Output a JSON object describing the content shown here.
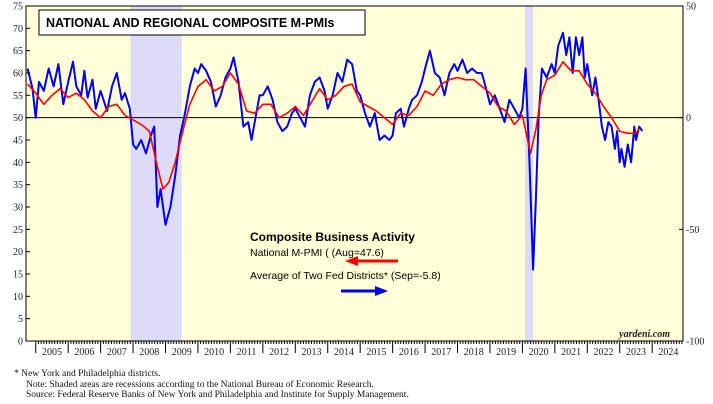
{
  "chart_data": {
    "type": "line",
    "title": "NATIONAL AND REGIONAL COMPOSITE M-PMIs",
    "legend_title": "Composite Business Activity",
    "left_axis": {
      "ylim": [
        0,
        75
      ],
      "ticks": [
        "0",
        "5",
        "10",
        "15",
        "20",
        "25",
        "30",
        "35",
        "40",
        "45",
        "50",
        "55",
        "60",
        "65",
        "70",
        "75"
      ]
    },
    "right_axis": {
      "ylim": [
        -100,
        50
      ],
      "ticks": [
        "-100",
        "-50",
        "0",
        "50"
      ]
    },
    "x_range": [
      2004.7,
      2024.95
    ],
    "x_ticks": [
      "2005",
      "2006",
      "2007",
      "2008",
      "2009",
      "2010",
      "2011",
      "2012",
      "2013",
      "2014",
      "2015",
      "2016",
      "2017",
      "2018",
      "2019",
      "2020",
      "2021",
      "2022",
      "2023",
      "2024"
    ],
    "reference_line": {
      "axis": "right",
      "value": 0
    },
    "recessions": [
      {
        "start": 2007.92,
        "end": 2009.5
      },
      {
        "start": 2020.08,
        "end": 2020.33
      }
    ],
    "series": [
      {
        "name": "National M-PMI",
        "legend_label": "National M-PMI ( (Aug=47.6)",
        "axis": "left",
        "color": "#ff0000",
        "points": [
          [
            2004.75,
            57.5
          ],
          [
            2005.0,
            55.5
          ],
          [
            2005.25,
            53.0
          ],
          [
            2005.5,
            55.0
          ],
          [
            2005.75,
            56.5
          ],
          [
            2006.0,
            54.5
          ],
          [
            2006.25,
            55.5
          ],
          [
            2006.5,
            54.0
          ],
          [
            2006.75,
            51.5
          ],
          [
            2007.0,
            50.0
          ],
          [
            2007.25,
            52.5
          ],
          [
            2007.5,
            53.0
          ],
          [
            2007.75,
            50.5
          ],
          [
            2008.0,
            49.5
          ],
          [
            2008.25,
            48.5
          ],
          [
            2008.5,
            47.0
          ],
          [
            2008.75,
            39.0
          ],
          [
            2008.92,
            34.0
          ],
          [
            2009.1,
            35.5
          ],
          [
            2009.3,
            40.0
          ],
          [
            2009.5,
            46.0
          ],
          [
            2009.75,
            53.0
          ],
          [
            2010.0,
            57.0
          ],
          [
            2010.25,
            58.5
          ],
          [
            2010.5,
            56.0
          ],
          [
            2010.75,
            57.0
          ],
          [
            2011.0,
            60.0
          ],
          [
            2011.25,
            57.5
          ],
          [
            2011.5,
            51.5
          ],
          [
            2011.75,
            51.0
          ],
          [
            2012.0,
            53.0
          ],
          [
            2012.25,
            53.0
          ],
          [
            2012.5,
            50.0
          ],
          [
            2012.75,
            51.0
          ],
          [
            2013.0,
            52.5
          ],
          [
            2013.25,
            50.5
          ],
          [
            2013.5,
            53.5
          ],
          [
            2013.75,
            56.5
          ],
          [
            2014.0,
            54.0
          ],
          [
            2014.25,
            55.0
          ],
          [
            2014.5,
            57.0
          ],
          [
            2014.75,
            57.5
          ],
          [
            2015.0,
            53.5
          ],
          [
            2015.25,
            52.5
          ],
          [
            2015.5,
            51.5
          ],
          [
            2015.75,
            50.0
          ],
          [
            2016.0,
            48.5
          ],
          [
            2016.25,
            51.0
          ],
          [
            2016.5,
            50.5
          ],
          [
            2016.75,
            52.5
          ],
          [
            2017.0,
            56.0
          ],
          [
            2017.25,
            55.0
          ],
          [
            2017.5,
            57.5
          ],
          [
            2017.75,
            58.5
          ],
          [
            2018.0,
            59.0
          ],
          [
            2018.25,
            58.5
          ],
          [
            2018.5,
            58.5
          ],
          [
            2018.75,
            57.0
          ],
          [
            2019.0,
            55.5
          ],
          [
            2019.25,
            52.5
          ],
          [
            2019.5,
            51.5
          ],
          [
            2019.75,
            48.5
          ],
          [
            2020.0,
            50.5
          ],
          [
            2020.25,
            42.0
          ],
          [
            2020.42,
            47.5
          ],
          [
            2020.58,
            55.0
          ],
          [
            2020.75,
            58.5
          ],
          [
            2021.0,
            59.5
          ],
          [
            2021.25,
            62.5
          ],
          [
            2021.5,
            60.5
          ],
          [
            2021.75,
            60.5
          ],
          [
            2022.0,
            57.5
          ],
          [
            2022.25,
            55.5
          ],
          [
            2022.5,
            52.5
          ],
          [
            2022.75,
            50.0
          ],
          [
            2023.0,
            47.0
          ],
          [
            2023.25,
            46.5
          ],
          [
            2023.5,
            46.5
          ],
          [
            2023.6,
            47.6
          ]
        ]
      },
      {
        "name": "Average of Two Fed Districts*",
        "legend_label": "Average of Two Fed Districts* (Sep=-5.8)",
        "axis": "right",
        "color": "#0000ee",
        "points": [
          [
            2004.75,
            22
          ],
          [
            2004.9,
            13
          ],
          [
            2005.0,
            0
          ],
          [
            2005.1,
            16
          ],
          [
            2005.25,
            12
          ],
          [
            2005.4,
            22
          ],
          [
            2005.55,
            14
          ],
          [
            2005.7,
            24
          ],
          [
            2005.85,
            6
          ],
          [
            2006.0,
            16
          ],
          [
            2006.15,
            25
          ],
          [
            2006.25,
            14
          ],
          [
            2006.4,
            10
          ],
          [
            2006.5,
            21
          ],
          [
            2006.6,
            9
          ],
          [
            2006.75,
            17
          ],
          [
            2006.85,
            4
          ],
          [
            2007.0,
            12
          ],
          [
            2007.2,
            3
          ],
          [
            2007.35,
            14
          ],
          [
            2007.5,
            20
          ],
          [
            2007.65,
            8
          ],
          [
            2007.75,
            11
          ],
          [
            2007.9,
            4
          ],
          [
            2008.0,
            -12
          ],
          [
            2008.1,
            -14
          ],
          [
            2008.25,
            -10
          ],
          [
            2008.4,
            -16
          ],
          [
            2008.55,
            -8
          ],
          [
            2008.65,
            -4
          ],
          [
            2008.75,
            -40
          ],
          [
            2008.85,
            -32
          ],
          [
            2009.0,
            -48
          ],
          [
            2009.15,
            -40
          ],
          [
            2009.3,
            -26
          ],
          [
            2009.45,
            -8
          ],
          [
            2009.6,
            2
          ],
          [
            2009.75,
            14
          ],
          [
            2009.9,
            22
          ],
          [
            2010.0,
            20
          ],
          [
            2010.1,
            24
          ],
          [
            2010.25,
            21
          ],
          [
            2010.4,
            16
          ],
          [
            2010.55,
            5
          ],
          [
            2010.7,
            10
          ],
          [
            2010.85,
            18
          ],
          [
            2011.0,
            22
          ],
          [
            2011.1,
            27
          ],
          [
            2011.25,
            16
          ],
          [
            2011.4,
            -4
          ],
          [
            2011.55,
            -2
          ],
          [
            2011.65,
            -10
          ],
          [
            2011.75,
            -2
          ],
          [
            2011.9,
            10
          ],
          [
            2012.0,
            10
          ],
          [
            2012.15,
            14
          ],
          [
            2012.3,
            8
          ],
          [
            2012.45,
            -2
          ],
          [
            2012.6,
            -6
          ],
          [
            2012.75,
            -4
          ],
          [
            2012.9,
            2
          ],
          [
            2013.0,
            4
          ],
          [
            2013.15,
            0
          ],
          [
            2013.3,
            -4
          ],
          [
            2013.45,
            10
          ],
          [
            2013.6,
            16
          ],
          [
            2013.75,
            18
          ],
          [
            2013.9,
            12
          ],
          [
            2014.0,
            4
          ],
          [
            2014.15,
            10
          ],
          [
            2014.3,
            20
          ],
          [
            2014.45,
            16
          ],
          [
            2014.6,
            26
          ],
          [
            2014.75,
            24
          ],
          [
            2014.9,
            12
          ],
          [
            2015.0,
            10
          ],
          [
            2015.15,
            2
          ],
          [
            2015.3,
            -4
          ],
          [
            2015.45,
            2
          ],
          [
            2015.6,
            -10
          ],
          [
            2015.75,
            -8
          ],
          [
            2015.9,
            -10
          ],
          [
            2016.0,
            -8
          ],
          [
            2016.1,
            2
          ],
          [
            2016.25,
            4
          ],
          [
            2016.35,
            -4
          ],
          [
            2016.5,
            4
          ],
          [
            2016.6,
            8
          ],
          [
            2016.75,
            10
          ],
          [
            2016.9,
            16
          ],
          [
            2017.0,
            22
          ],
          [
            2017.15,
            30
          ],
          [
            2017.3,
            20
          ],
          [
            2017.45,
            18
          ],
          [
            2017.6,
            10
          ],
          [
            2017.75,
            20
          ],
          [
            2017.9,
            24
          ],
          [
            2018.0,
            21
          ],
          [
            2018.15,
            26
          ],
          [
            2018.3,
            20
          ],
          [
            2018.45,
            22
          ],
          [
            2018.6,
            20
          ],
          [
            2018.75,
            20
          ],
          [
            2018.9,
            12
          ],
          [
            2019.0,
            6
          ],
          [
            2019.15,
            10
          ],
          [
            2019.3,
            4
          ],
          [
            2019.45,
            -2
          ],
          [
            2019.6,
            8
          ],
          [
            2019.75,
            4
          ],
          [
            2019.9,
            0
          ],
          [
            2020.0,
            4
          ],
          [
            2020.1,
            22
          ],
          [
            2020.22,
            -20
          ],
          [
            2020.33,
            -68
          ],
          [
            2020.42,
            -35
          ],
          [
            2020.5,
            0
          ],
          [
            2020.6,
            22
          ],
          [
            2020.75,
            18
          ],
          [
            2020.9,
            24
          ],
          [
            2021.0,
            20
          ],
          [
            2021.1,
            32
          ],
          [
            2021.25,
            38
          ],
          [
            2021.35,
            28
          ],
          [
            2021.45,
            36
          ],
          [
            2021.55,
            20
          ],
          [
            2021.65,
            36
          ],
          [
            2021.75,
            28
          ],
          [
            2021.85,
            36
          ],
          [
            2021.92,
            18
          ],
          [
            2022.0,
            24
          ],
          [
            2022.15,
            10
          ],
          [
            2022.25,
            18
          ],
          [
            2022.35,
            8
          ],
          [
            2022.45,
            -4
          ],
          [
            2022.55,
            -10
          ],
          [
            2022.65,
            -2
          ],
          [
            2022.75,
            -4
          ],
          [
            2022.85,
            -14
          ],
          [
            2022.92,
            -6
          ],
          [
            2023.0,
            -20
          ],
          [
            2023.05,
            -14
          ],
          [
            2023.15,
            -22
          ],
          [
            2023.25,
            -12
          ],
          [
            2023.35,
            -20
          ],
          [
            2023.45,
            -4
          ],
          [
            2023.5,
            -10
          ],
          [
            2023.6,
            -4
          ],
          [
            2023.7,
            -6
          ]
        ]
      }
    ],
    "credit": "yardeni.com"
  },
  "footnotes": {
    "line1": "*  New York and Philadelphia districts.",
    "line2": "Note: Shaded areas are recessions according to the National Bureau of Economic Research.",
    "line3": "Source: Federal Reserve Banks of New York and Philadelphia and Institute for Supply Management."
  },
  "colors": {
    "plot_background": "#ffffd8",
    "recession_shade": "#dcdcf8",
    "national": "#ff0000",
    "regional": "#0000ee"
  }
}
